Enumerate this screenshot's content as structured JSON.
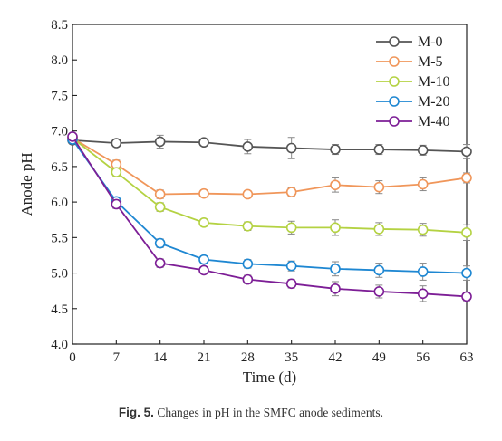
{
  "chart_data": {
    "type": "line",
    "xlabel": "Time (d)",
    "ylabel": "Anode pH",
    "xlim": [
      0,
      63
    ],
    "ylim": [
      4.0,
      8.5
    ],
    "x_ticks": [
      0,
      7,
      14,
      21,
      28,
      35,
      42,
      49,
      56,
      63
    ],
    "y_ticks": [
      "4.0",
      "4.5",
      "5.0",
      "5.5",
      "6.0",
      "6.5",
      "7.0",
      "7.5",
      "8.0",
      "8.5"
    ],
    "grid": false,
    "legend_position": "top-right",
    "x": [
      0,
      7,
      14,
      21,
      28,
      35,
      42,
      49,
      56,
      63
    ],
    "series": [
      {
        "name": "M-0",
        "color": "#555555",
        "values": [
          6.87,
          6.83,
          6.85,
          6.84,
          6.78,
          6.76,
          6.74,
          6.74,
          6.73,
          6.71
        ],
        "errors": [
          0.05,
          0.05,
          0.09,
          0.04,
          0.1,
          0.15,
          0.07,
          0.07,
          0.07,
          0.1
        ]
      },
      {
        "name": "M-5",
        "color": "#f0965a",
        "values": [
          6.9,
          6.53,
          6.11,
          6.12,
          6.11,
          6.14,
          6.24,
          6.21,
          6.25,
          6.34
        ],
        "errors": [
          0.05,
          0.06,
          0.06,
          0.05,
          0.05,
          0.06,
          0.1,
          0.09,
          0.09,
          0.07
        ]
      },
      {
        "name": "M-10",
        "color": "#b4d242",
        "values": [
          6.9,
          6.42,
          5.93,
          5.71,
          5.66,
          5.64,
          5.64,
          5.62,
          5.61,
          5.57
        ],
        "errors": [
          0.05,
          0.06,
          0.06,
          0.05,
          0.06,
          0.09,
          0.11,
          0.09,
          0.09,
          0.11
        ]
      },
      {
        "name": "M-20",
        "color": "#1e87d2",
        "values": [
          6.88,
          6.01,
          5.42,
          5.19,
          5.13,
          5.1,
          5.06,
          5.04,
          5.02,
          5.0
        ],
        "errors": [
          0.05,
          0.06,
          0.06,
          0.05,
          0.06,
          0.07,
          0.1,
          0.1,
          0.12,
          0.1
        ]
      },
      {
        "name": "M-40",
        "color": "#7d1e96",
        "values": [
          6.92,
          5.97,
          5.14,
          5.04,
          4.91,
          4.85,
          4.78,
          4.74,
          4.71,
          4.67
        ],
        "errors": [
          0.05,
          0.06,
          0.06,
          0.05,
          0.06,
          0.06,
          0.1,
          0.09,
          0.11,
          0.06
        ]
      }
    ]
  },
  "caption": {
    "label": "Fig. 5.",
    "text": " Changes in pH in the SMFC anode sediments."
  }
}
